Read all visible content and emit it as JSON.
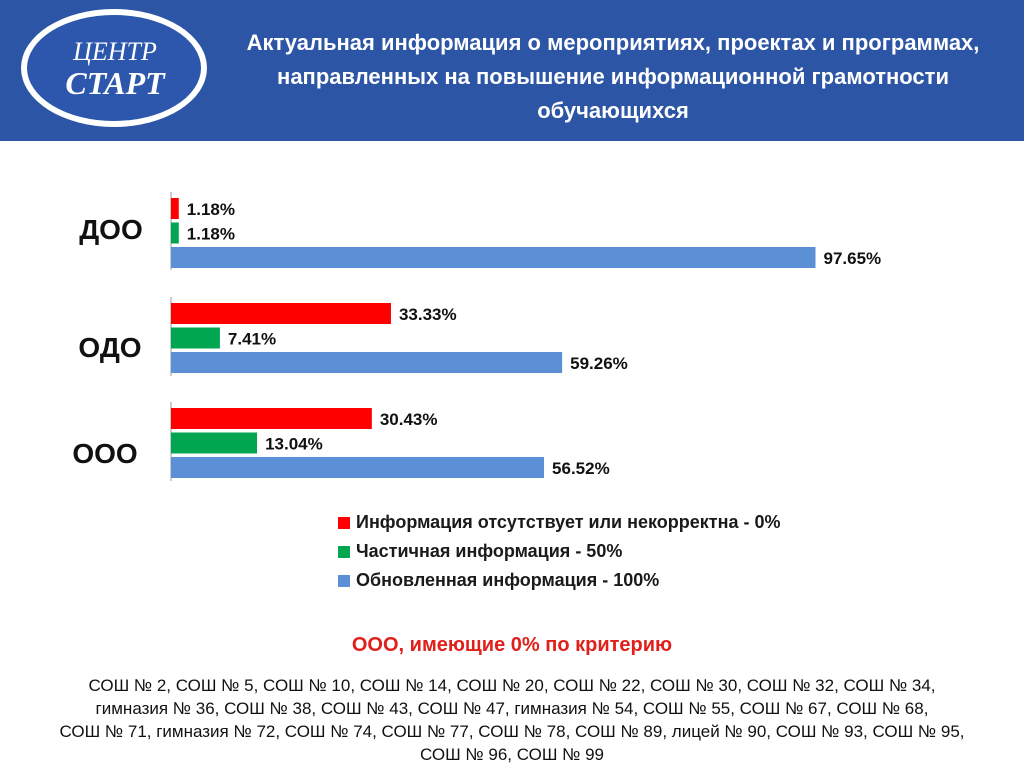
{
  "header": {
    "logo": {
      "line1": "ЦЕНТР",
      "line2": "СТАРТ"
    },
    "title": "Актуальная информация о мероприятиях, проектах и программах, направленных на повышение информационной грамотности обучающихся"
  },
  "chart_data": {
    "type": "bar",
    "orientation": "horizontal",
    "categories": [
      "ДОО",
      "ОДО",
      "ООО"
    ],
    "series": [
      {
        "name": "Информация отсутствует или некорректна - 0%",
        "color": "#ff0000",
        "values": [
          1.18,
          33.33,
          30.43
        ],
        "labels": [
          "1.18%",
          "33.33%",
          "30.43%"
        ]
      },
      {
        "name": "Частичная информация - 50%",
        "color": "#00a650",
        "values": [
          1.18,
          7.41,
          13.04
        ],
        "labels": [
          "1.18%",
          "7.41%",
          "13.04%"
        ]
      },
      {
        "name": "Обновленная информация - 100%",
        "color": "#5b8fd6",
        "values": [
          97.65,
          59.26,
          56.52
        ],
        "labels": [
          "97.65%",
          "59.26%",
          "56.52%"
        ]
      }
    ],
    "xlim": [
      0,
      100
    ],
    "grid": false,
    "legend_position": "bottom"
  },
  "subtitle": "ООО, имеющие 0% по критерию",
  "schools": {
    "line1": "СОШ № 2, СОШ № 5, СОШ № 10, СОШ № 14, СОШ № 20, СОШ № 22, СОШ № 30, СОШ № 32, СОШ № 34,",
    "line2": "гимназия № 36, СОШ № 38, СОШ № 43, СОШ № 47, гимназия № 54, СОШ № 55, СОШ № 67, СОШ № 68,",
    "line3": "СОШ № 71, гимназия № 72, СОШ № 74, СОШ № 77, СОШ № 78, СОШ № 89, лицей № 90, СОШ № 93, СОШ № 95,",
    "line4": "СОШ № 96, СОШ № 99"
  }
}
